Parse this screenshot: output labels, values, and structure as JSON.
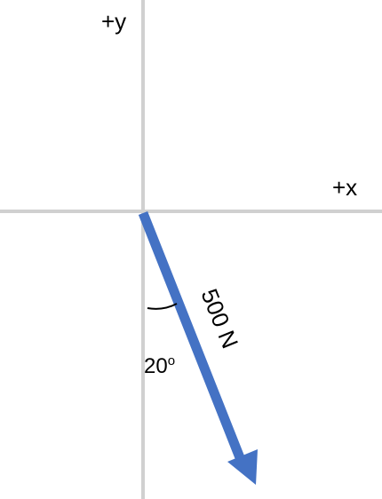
{
  "axes": {
    "x_label": "+x",
    "y_label": "+y",
    "color": "#d0d0d0"
  },
  "vector": {
    "magnitude_label": "500 N",
    "angle_from_negative_y_deg": 20,
    "direction": "down-right",
    "color": "#4472c4"
  },
  "angle": {
    "value": "20",
    "unit_symbol": "o"
  }
}
